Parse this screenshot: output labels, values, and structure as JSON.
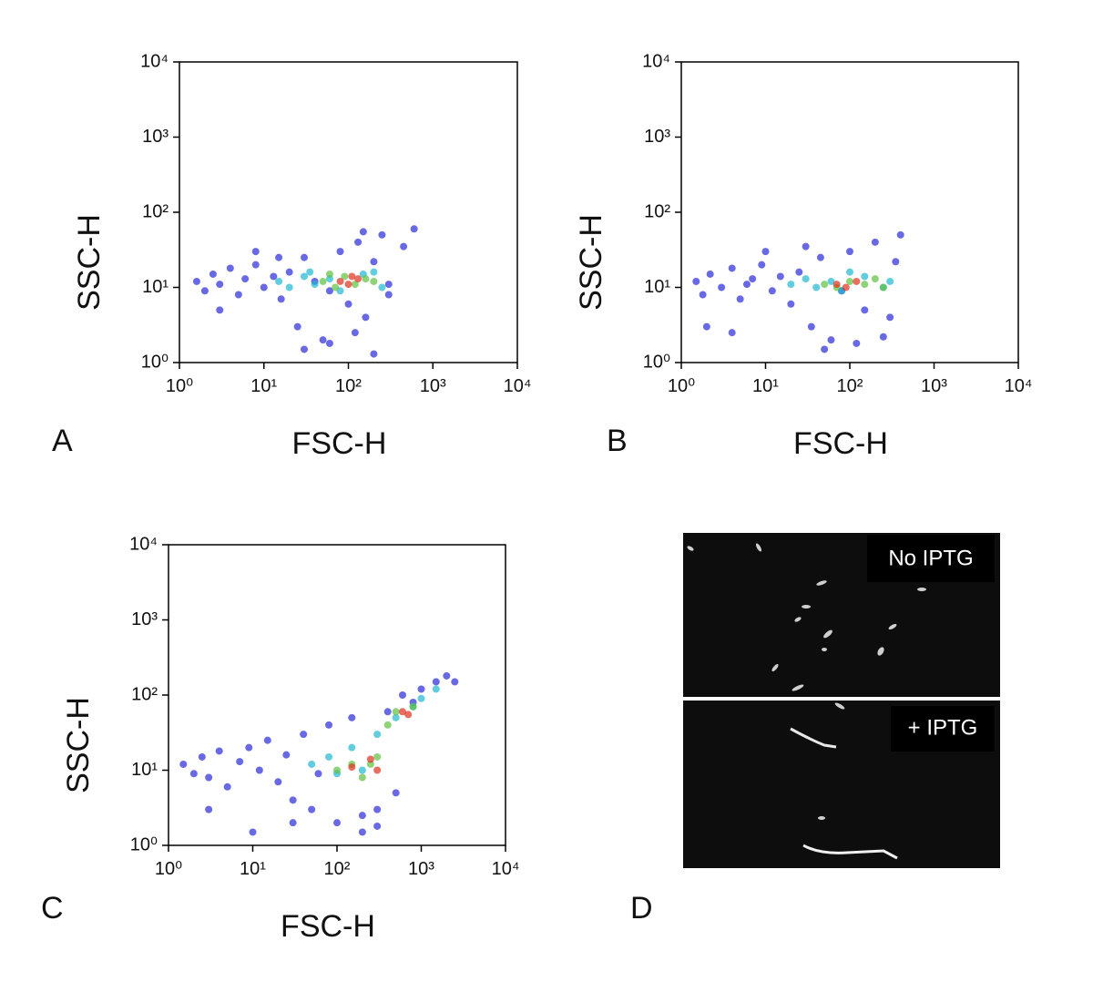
{
  "chart_data": [
    {
      "type": "scatter",
      "panel": "A",
      "xlabel": "FSC-H",
      "ylabel": "SSC-H",
      "xscale": "log",
      "yscale": "log",
      "xlim": [
        1,
        10000
      ],
      "ylim": [
        1,
        10000
      ],
      "xticks": [
        {
          "value": 1,
          "label": "10⁰"
        },
        {
          "value": 10,
          "label": "10¹"
        },
        {
          "value": 100,
          "label": "10²"
        },
        {
          "value": 1000,
          "label": "10³"
        },
        {
          "value": 10000,
          "label": "10⁴"
        }
      ],
      "yticks": [
        {
          "value": 1,
          "label": "10⁰"
        },
        {
          "value": 10,
          "label": "10¹"
        },
        {
          "value": 100,
          "label": "10²"
        },
        {
          "value": 1000,
          "label": "10³"
        },
        {
          "value": 10000,
          "label": "10⁴"
        }
      ],
      "series": [
        {
          "color": "#2a2ad8",
          "x": [
            1.6,
            2,
            2.5,
            3,
            4,
            5,
            6,
            8,
            10,
            13,
            16,
            20,
            25,
            30,
            40,
            50,
            60,
            80,
            100,
            130,
            160,
            200,
            250,
            300,
            450,
            600,
            30,
            60,
            120,
            200,
            3,
            8,
            15,
            300,
            150
          ],
          "values": [
            12,
            9,
            15,
            11,
            18,
            8,
            13,
            20,
            10,
            14,
            7,
            16,
            3,
            25,
            12,
            2,
            9,
            30,
            6,
            40,
            4,
            22,
            50,
            11,
            35,
            60,
            1.5,
            1.8,
            2.5,
            1.3,
            5,
            30,
            25,
            8,
            55
          ]
        },
        {
          "color": "#20b8d0",
          "x": [
            15,
            20,
            30,
            40,
            60,
            80,
            150,
            250,
            200,
            35
          ],
          "values": [
            12,
            10,
            14,
            11,
            13,
            9,
            15,
            10,
            16,
            16
          ]
        },
        {
          "color": "#60c040",
          "x": [
            50,
            70,
            90,
            120,
            160,
            200,
            60
          ],
          "values": [
            12,
            10,
            14,
            11,
            13,
            12,
            15
          ]
        },
        {
          "color": "#e03020",
          "x": [
            80,
            100,
            130,
            110
          ],
          "values": [
            12,
            11,
            13,
            14
          ]
        }
      ]
    },
    {
      "type": "scatter",
      "panel": "B",
      "xlabel": "FSC-H",
      "ylabel": "SSC-H",
      "xscale": "log",
      "yscale": "log",
      "xlim": [
        1,
        10000
      ],
      "ylim": [
        1,
        10000
      ],
      "xticks": [
        {
          "value": 1,
          "label": "10⁰"
        },
        {
          "value": 10,
          "label": "10¹"
        },
        {
          "value": 100,
          "label": "10²"
        },
        {
          "value": 1000,
          "label": "10³"
        },
        {
          "value": 10000,
          "label": "10⁴"
        }
      ],
      "yticks": [
        {
          "value": 1,
          "label": "10⁰"
        },
        {
          "value": 10,
          "label": "10¹"
        },
        {
          "value": 100,
          "label": "10²"
        },
        {
          "value": 1000,
          "label": "10³"
        },
        {
          "value": 10000,
          "label": "10⁴"
        }
      ],
      "series": [
        {
          "color": "#2a2ad8",
          "x": [
            1.5,
            1.8,
            2.2,
            3,
            4,
            5,
            7,
            9,
            12,
            15,
            20,
            25,
            35,
            45,
            60,
            80,
            100,
            150,
            200,
            300,
            400,
            2,
            4,
            10,
            50,
            120,
            250,
            350,
            30,
            6
          ],
          "values": [
            12,
            8,
            15,
            10,
            18,
            7,
            13,
            20,
            9,
            14,
            6,
            16,
            3,
            25,
            2,
            9,
            30,
            5,
            40,
            4,
            50,
            3,
            2.5,
            30,
            1.5,
            1.8,
            2.2,
            22,
            35,
            11
          ]
        },
        {
          "color": "#20b8d0",
          "x": [
            20,
            30,
            40,
            60,
            80,
            150,
            250,
            300,
            100
          ],
          "values": [
            11,
            13,
            10,
            12,
            9,
            14,
            10,
            12,
            16
          ]
        },
        {
          "color": "#60c040",
          "x": [
            50,
            70,
            100,
            150,
            200,
            250
          ],
          "values": [
            11,
            10,
            12,
            11,
            13,
            10
          ]
        },
        {
          "color": "#e03020",
          "x": [
            70,
            90,
            120
          ],
          "values": [
            11,
            10,
            12
          ]
        }
      ]
    },
    {
      "type": "scatter",
      "panel": "C",
      "xlabel": "FSC-H",
      "ylabel": "SSC-H",
      "xscale": "log",
      "yscale": "log",
      "xlim": [
        1,
        10000
      ],
      "ylim": [
        1,
        10000
      ],
      "xticks": [
        {
          "value": 1,
          "label": "10⁰"
        },
        {
          "value": 10,
          "label": "10¹"
        },
        {
          "value": 100,
          "label": "10²"
        },
        {
          "value": 1000,
          "label": "10³"
        },
        {
          "value": 10000,
          "label": "10⁴"
        }
      ],
      "yticks": [
        {
          "value": 1,
          "label": "10⁰"
        },
        {
          "value": 10,
          "label": "10¹"
        },
        {
          "value": 100,
          "label": "10²"
        },
        {
          "value": 1000,
          "label": "10³"
        },
        {
          "value": 10000,
          "label": "10⁴"
        }
      ],
      "series": [
        {
          "color": "#2a2ad8",
          "x": [
            1.5,
            2,
            2.5,
            3,
            4,
            5,
            7,
            9,
            12,
            15,
            20,
            25,
            30,
            40,
            50,
            60,
            80,
            100,
            150,
            200,
            300,
            400,
            600,
            800,
            1000,
            1500,
            2000,
            2500,
            10,
            30,
            200,
            300,
            3,
            500
          ],
          "values": [
            12,
            9,
            15,
            8,
            18,
            6,
            13,
            20,
            10,
            25,
            7,
            16,
            4,
            30,
            3,
            9,
            40,
            2,
            50,
            1.5,
            3,
            60,
            100,
            80,
            120,
            150,
            180,
            150,
            1.5,
            2,
            2.5,
            1.8,
            3,
            5
          ]
        },
        {
          "color": "#20b8d0",
          "x": [
            50,
            80,
            100,
            150,
            300,
            500,
            800,
            1000,
            1500,
            200
          ],
          "values": [
            12,
            15,
            9,
            20,
            30,
            50,
            70,
            90,
            120,
            10
          ]
        },
        {
          "color": "#60c040",
          "x": [
            100,
            150,
            200,
            300,
            400,
            500,
            800,
            250
          ],
          "values": [
            10,
            12,
            8,
            15,
            40,
            60,
            70,
            12
          ]
        },
        {
          "color": "#e03020",
          "x": [
            150,
            250,
            300,
            600,
            700
          ],
          "values": [
            11,
            14,
            10,
            60,
            55
          ]
        }
      ]
    }
  ],
  "panel_d": {
    "letter": "D",
    "labels": [
      "No IPTG",
      "+ IPTG"
    ]
  }
}
